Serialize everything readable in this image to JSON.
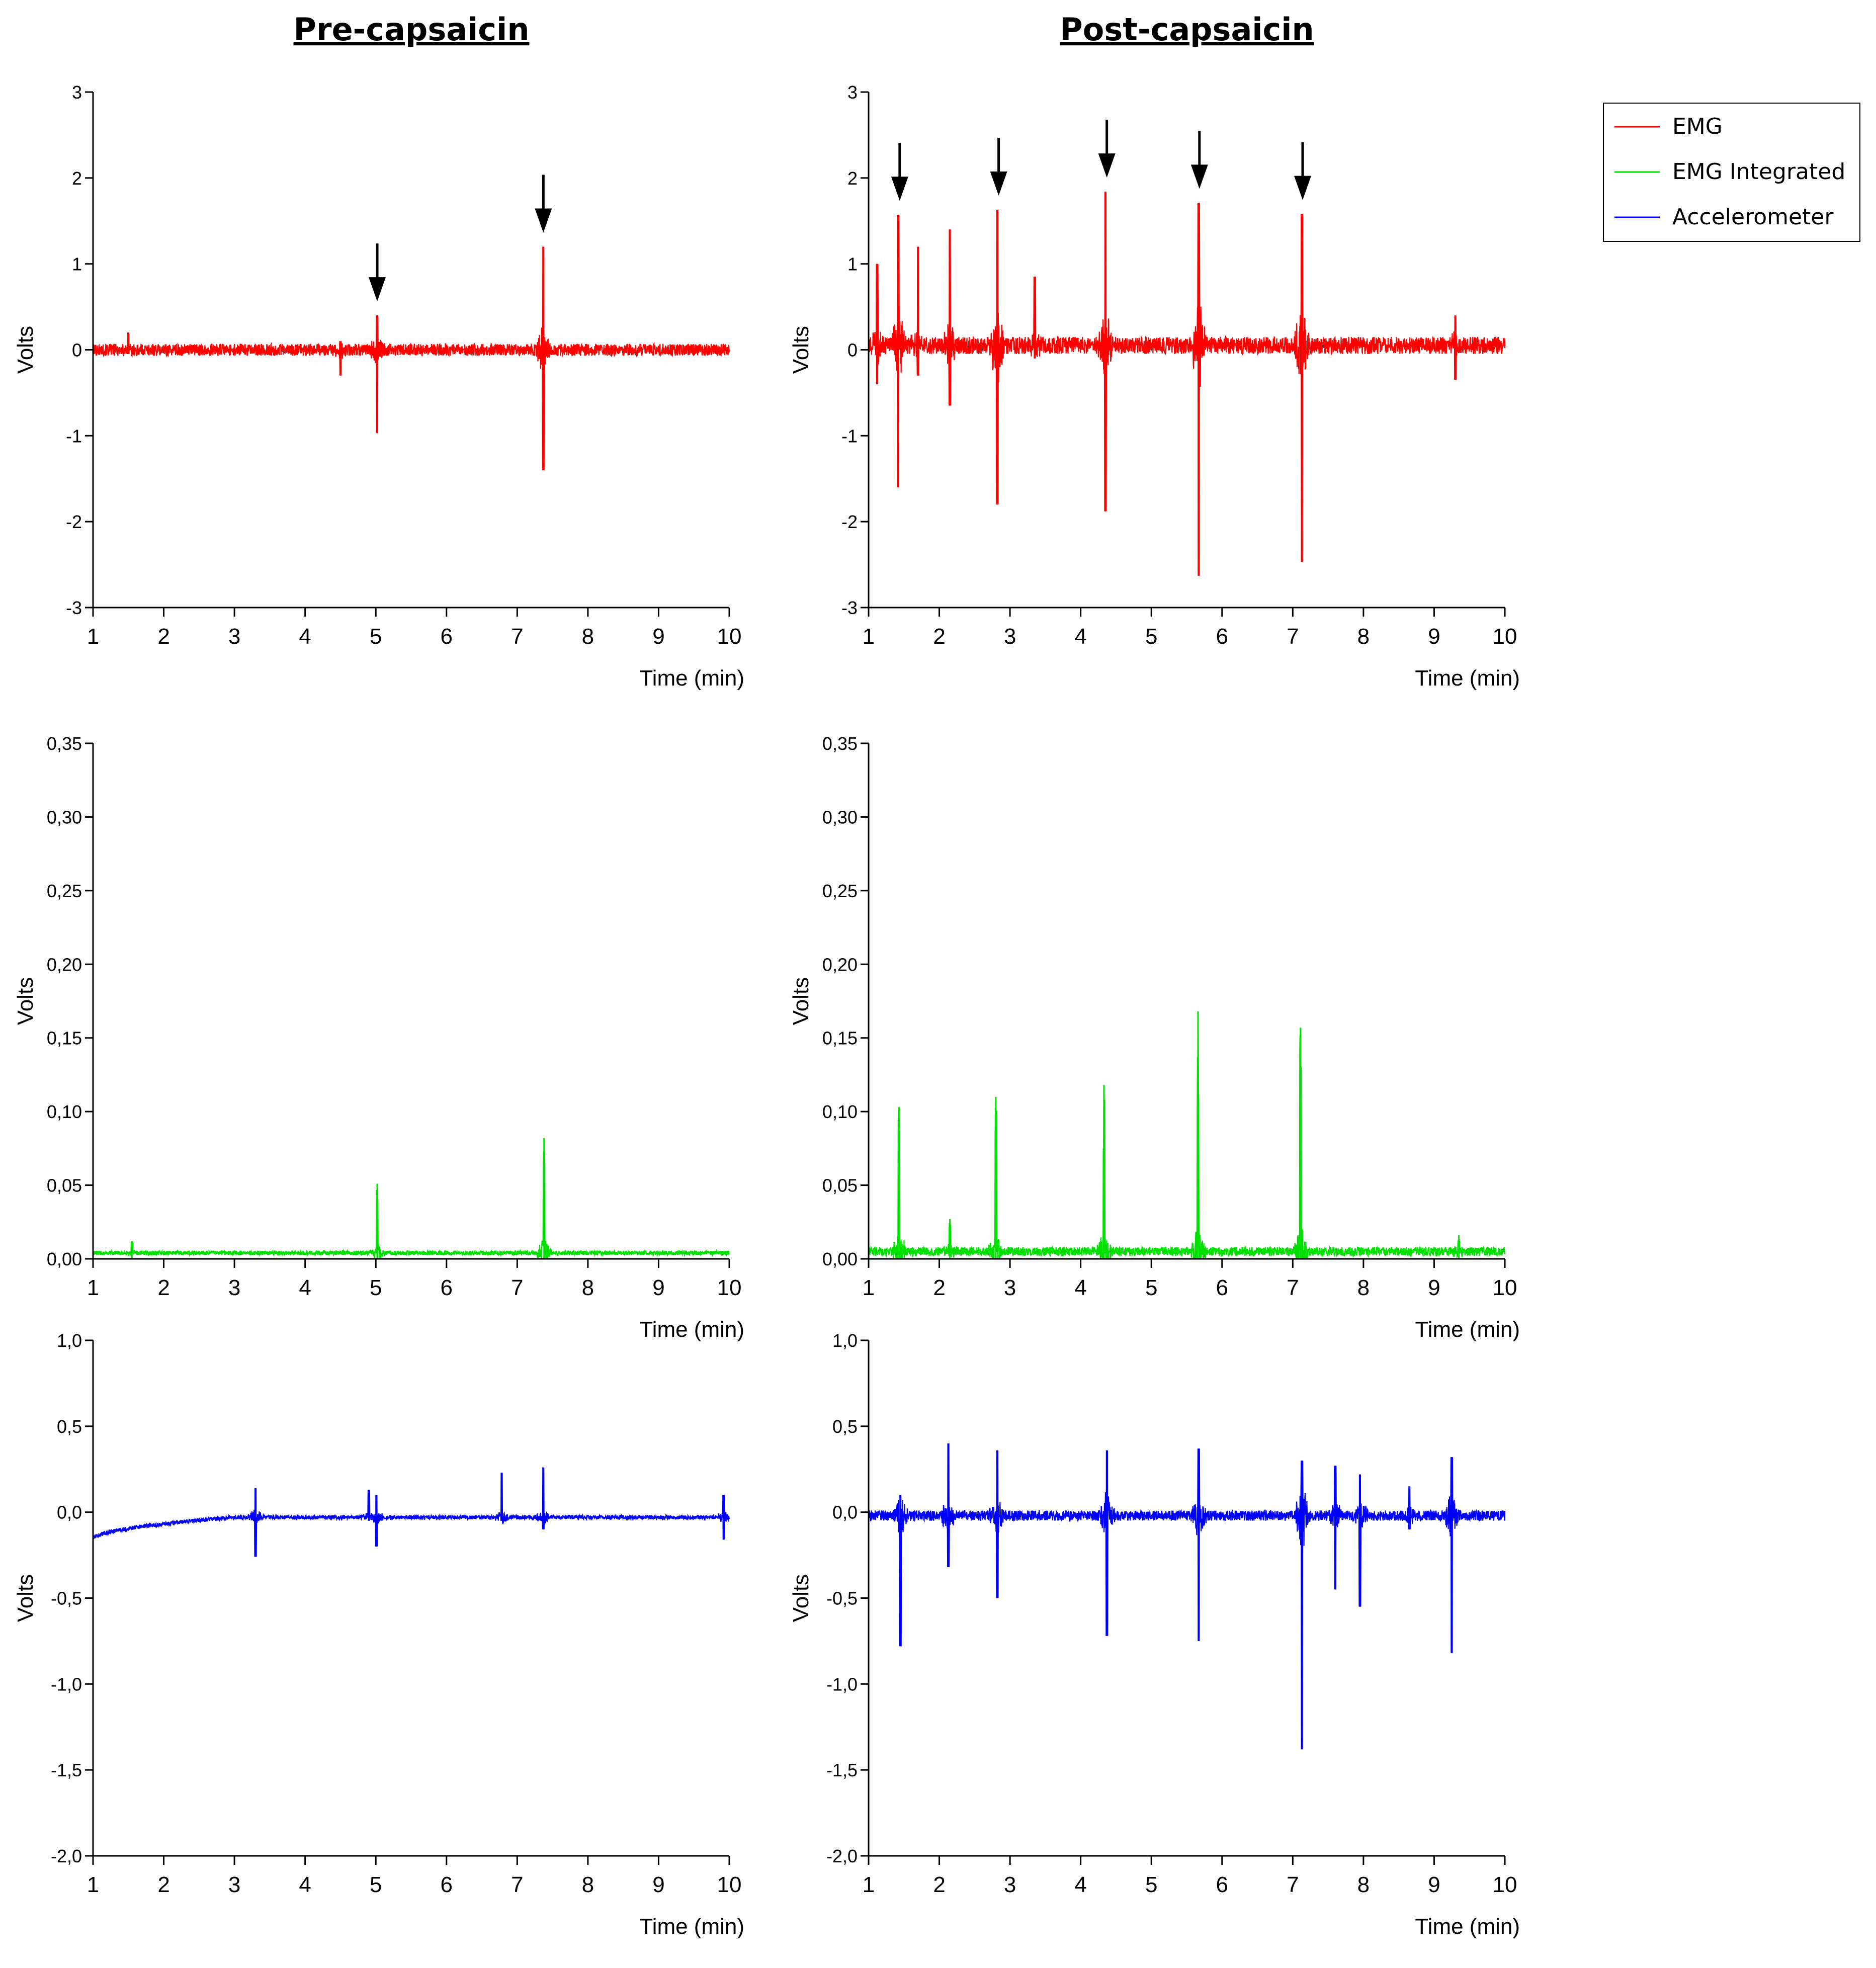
{
  "figure": {
    "col_titles": [
      "Pre-capsaicin",
      "Post-capsaicin"
    ],
    "legend": [
      {
        "label": "EMG",
        "color": "#ff0000"
      },
      {
        "label": "EMG Integrated",
        "color": "#00e000"
      },
      {
        "label": "Accelerometer",
        "color": "#0000ff"
      }
    ],
    "marker_symbol": "arrow-down-icon"
  },
  "chart_data": [
    {
      "type": "line",
      "panel": "pre-emg",
      "series_name": "EMG",
      "color": "#ff0000",
      "xlabel": "Time (min)",
      "ylabel": "Volts",
      "xlim": [
        1,
        10
      ],
      "ylim": [
        -3,
        3
      ],
      "xticks": [
        "1",
        "2",
        "3",
        "4",
        "5",
        "6",
        "7",
        "8",
        "9",
        "10"
      ],
      "yticks": [
        "-3",
        "-2",
        "-1",
        "0",
        "1",
        "2",
        "3"
      ],
      "baseline": 0,
      "noise": 0.07,
      "events": [
        {
          "x": 1.5,
          "up": 0.2,
          "down": -0.05
        },
        {
          "x": 4.5,
          "up": 0.1,
          "down": -0.3
        },
        {
          "x": 5.02,
          "up": 0.4,
          "down": -0.97
        },
        {
          "x": 7.37,
          "up": 1.2,
          "down": -1.4
        }
      ],
      "arrows": [
        5.02,
        7.37
      ]
    },
    {
      "type": "line",
      "panel": "post-emg",
      "series_name": "EMG",
      "color": "#ff0000",
      "xlabel": "Time (min)",
      "ylabel": "Volts",
      "xlim": [
        1,
        10
      ],
      "ylim": [
        -3,
        3
      ],
      "xticks": [
        "1",
        "2",
        "3",
        "4",
        "5",
        "6",
        "7",
        "8",
        "9",
        "10"
      ],
      "yticks": [
        "-3",
        "-2",
        "-1",
        "0",
        "1",
        "2",
        "3"
      ],
      "baseline": 0.05,
      "noise": 0.1,
      "events": [
        {
          "x": 1.12,
          "up": 1.0,
          "down": -0.4
        },
        {
          "x": 1.42,
          "up": 1.57,
          "down": -1.6
        },
        {
          "x": 1.7,
          "up": 1.2,
          "down": -0.3
        },
        {
          "x": 2.15,
          "up": 1.4,
          "down": -0.65
        },
        {
          "x": 2.82,
          "up": 1.63,
          "down": -1.8
        },
        {
          "x": 3.35,
          "up": 0.85,
          "down": -0.1
        },
        {
          "x": 4.35,
          "up": 1.84,
          "down": -1.88
        },
        {
          "x": 5.67,
          "up": 1.71,
          "down": -2.63
        },
        {
          "x": 7.13,
          "up": 1.58,
          "down": -2.47
        },
        {
          "x": 9.3,
          "up": 0.4,
          "down": -0.35
        }
      ],
      "arrows": [
        1.44,
        2.84,
        4.37,
        5.68,
        7.14
      ]
    },
    {
      "type": "line",
      "panel": "pre-emg-integrated",
      "series_name": "EMG Integrated",
      "color": "#00e000",
      "xlabel": "Time (min)",
      "ylabel": "Volts",
      "xlim": [
        1,
        10
      ],
      "ylim": [
        0,
        0.35
      ],
      "xticks": [
        "1",
        "2",
        "3",
        "4",
        "5",
        "6",
        "7",
        "8",
        "9",
        "10"
      ],
      "yticks": [
        "0,00",
        "0,05",
        "0,10",
        "0,15",
        "0,20",
        "0,25",
        "0,30",
        "0,35"
      ],
      "baseline": 0.004,
      "noise": 0.0015,
      "events": [
        {
          "x": 1.55,
          "up": 0.012,
          "down": 0
        },
        {
          "x": 5.02,
          "up": 0.051,
          "down": 0
        },
        {
          "x": 7.38,
          "up": 0.082,
          "down": 0
        }
      ]
    },
    {
      "type": "line",
      "panel": "post-emg-integrated",
      "series_name": "EMG Integrated",
      "color": "#00e000",
      "xlabel": "Time (min)",
      "ylabel": "Volts",
      "xlim": [
        1,
        10
      ],
      "ylim": [
        0,
        0.35
      ],
      "xticks": [
        "1",
        "2",
        "3",
        "4",
        "5",
        "6",
        "7",
        "8",
        "9",
        "10"
      ],
      "yticks": [
        "0,00",
        "0,05",
        "0,10",
        "0,15",
        "0,20",
        "0,25",
        "0,30",
        "0,35"
      ],
      "baseline": 0.005,
      "noise": 0.003,
      "events": [
        {
          "x": 1.43,
          "up": 0.103,
          "down": 0
        },
        {
          "x": 2.15,
          "up": 0.027,
          "down": 0
        },
        {
          "x": 2.8,
          "up": 0.11,
          "down": 0
        },
        {
          "x": 4.33,
          "up": 0.118,
          "down": 0
        },
        {
          "x": 5.66,
          "up": 0.168,
          "down": 0
        },
        {
          "x": 7.11,
          "up": 0.157,
          "down": 0
        },
        {
          "x": 9.35,
          "up": 0.016,
          "down": 0
        }
      ]
    },
    {
      "type": "line",
      "panel": "pre-accelerometer",
      "series_name": "Accelerometer",
      "color": "#0000ff",
      "xlabel": "Time (min)",
      "ylabel": "Volts",
      "xlim": [
        1,
        10
      ],
      "ylim": [
        -2.0,
        1.0
      ],
      "xticks": [
        "1",
        "2",
        "3",
        "4",
        "5",
        "6",
        "7",
        "8",
        "9",
        "10"
      ],
      "yticks": [
        "-2,0",
        "-1,5",
        "-1,0",
        "-0,5",
        "0,0",
        "0,5",
        "1,0"
      ],
      "baseline": -0.03,
      "drift_start": -0.16,
      "drift_end_x": 3.0,
      "noise": 0.012,
      "events": [
        {
          "x": 3.3,
          "up": 0.14,
          "down": -0.26
        },
        {
          "x": 4.9,
          "up": 0.13,
          "down": -0.05
        },
        {
          "x": 5.01,
          "up": 0.1,
          "down": -0.2
        },
        {
          "x": 6.78,
          "up": 0.23,
          "down": -0.05
        },
        {
          "x": 7.37,
          "up": 0.26,
          "down": -0.1
        },
        {
          "x": 9.92,
          "up": 0.1,
          "down": -0.16
        }
      ]
    },
    {
      "type": "line",
      "panel": "post-accelerometer",
      "series_name": "Accelerometer",
      "color": "#0000ff",
      "xlabel": "Time (min)",
      "ylabel": "Volts",
      "xlim": [
        1,
        10
      ],
      "ylim": [
        -2.0,
        1.0
      ],
      "xticks": [
        "1",
        "2",
        "3",
        "4",
        "5",
        "6",
        "7",
        "8",
        "9",
        "10"
      ],
      "yticks": [
        "-2,0",
        "-1,5",
        "-1,0",
        "-0,5",
        "0,0",
        "0,5",
        "1,0"
      ],
      "baseline": -0.02,
      "noise": 0.03,
      "events": [
        {
          "x": 1.45,
          "up": 0.1,
          "down": -0.78
        },
        {
          "x": 2.13,
          "up": 0.4,
          "down": -0.32
        },
        {
          "x": 2.82,
          "up": 0.36,
          "down": -0.5
        },
        {
          "x": 4.37,
          "up": 0.36,
          "down": -0.72
        },
        {
          "x": 5.67,
          "up": 0.37,
          "down": -0.75
        },
        {
          "x": 7.13,
          "up": 0.3,
          "down": -1.38
        },
        {
          "x": 7.6,
          "up": 0.27,
          "down": -0.45
        },
        {
          "x": 7.95,
          "up": 0.22,
          "down": -0.55
        },
        {
          "x": 8.65,
          "up": 0.15,
          "down": -0.1
        },
        {
          "x": 9.25,
          "up": 0.32,
          "down": -0.82
        }
      ]
    }
  ]
}
